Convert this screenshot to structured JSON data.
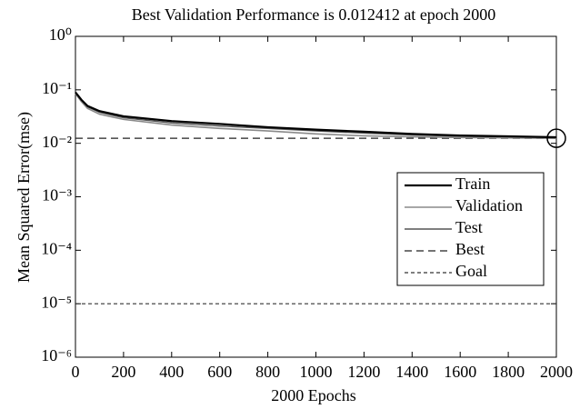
{
  "chart_data": {
    "type": "line",
    "title": "Best Validation Performance is 0.012412 at epoch 2000",
    "xlabel": "2000 Epochs",
    "ylabel": "Mean Squared Error(mse)",
    "log_y": true,
    "xlim": [
      0,
      2000
    ],
    "ylim": [
      1e-06,
      1
    ],
    "xticks": [
      0,
      200,
      400,
      600,
      800,
      1000,
      1200,
      1400,
      1600,
      1800,
      2000
    ],
    "yticks": [
      {
        "value": 1e-06,
        "label": "10⁻⁶"
      },
      {
        "value": 1e-05,
        "label": "10⁻⁵"
      },
      {
        "value": 0.0001,
        "label": "10⁻⁴"
      },
      {
        "value": 0.001,
        "label": "10⁻³"
      },
      {
        "value": 0.01,
        "label": "10⁻²"
      },
      {
        "value": 0.1,
        "label": "10⁻¹"
      },
      {
        "value": 1,
        "label": "10⁰"
      }
    ],
    "legend": "right",
    "series": [
      {
        "name": "Train",
        "color": "#000000",
        "width": 2.2,
        "dash": "none",
        "x": [
          0,
          25,
          50,
          100,
          200,
          400,
          600,
          800,
          1000,
          1200,
          1400,
          1600,
          1800,
          2000
        ],
        "values": [
          0.09,
          0.065,
          0.05,
          0.04,
          0.032,
          0.026,
          0.023,
          0.02,
          0.018,
          0.0165,
          0.015,
          0.014,
          0.0135,
          0.013
        ]
      },
      {
        "name": "Validation",
        "color": "#8a8a8a",
        "width": 1.6,
        "dash": "none",
        "x": [
          0,
          25,
          50,
          100,
          200,
          400,
          600,
          800,
          1000,
          1200,
          1400,
          1600,
          1800,
          2000
        ],
        "values": [
          0.085,
          0.06,
          0.045,
          0.035,
          0.028,
          0.022,
          0.019,
          0.017,
          0.015,
          0.0138,
          0.0132,
          0.0128,
          0.0126,
          0.012412
        ]
      },
      {
        "name": "Test",
        "color": "#555555",
        "width": 1.4,
        "dash": "none",
        "x": [
          0,
          25,
          50,
          100,
          200,
          400,
          600,
          800,
          1000,
          1200,
          1400,
          1600,
          1800,
          2000
        ],
        "values": [
          0.088,
          0.063,
          0.048,
          0.038,
          0.03,
          0.024,
          0.021,
          0.019,
          0.017,
          0.0155,
          0.0143,
          0.0135,
          0.013,
          0.0128
        ]
      },
      {
        "name": "Best",
        "color": "#222222",
        "width": 1.2,
        "dash": "8,5",
        "x": [
          0,
          2000
        ],
        "values": [
          0.012412,
          0.012412
        ]
      },
      {
        "name": "Goal",
        "color": "#333333",
        "width": 1.2,
        "dash": "4,3",
        "x": [
          0,
          2000
        ],
        "values": [
          1e-05,
          1e-05
        ]
      }
    ],
    "best_point": {
      "x": 2000,
      "y": 0.012412
    }
  }
}
